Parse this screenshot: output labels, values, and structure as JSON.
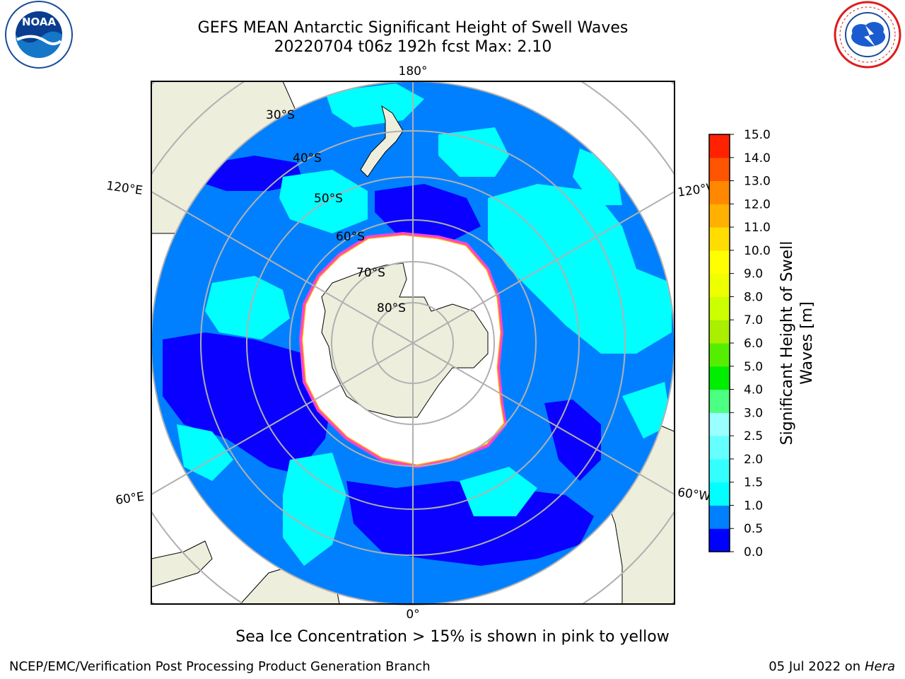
{
  "title": {
    "line1": "GEFS MEAN Antarctic Significant Height of Swell Waves",
    "line2": "20220704 t06z 192h fcst   Max: 2.10"
  },
  "logos": {
    "left": {
      "icon": "noaa-logo",
      "text": "NOAA"
    },
    "right": {
      "icon": "nws-logo",
      "text": "NATIONAL WEATHER SERVICE"
    }
  },
  "map": {
    "projection": "south-polar-stereographic",
    "lon_labels": {
      "top": "180°",
      "bottom": "0°",
      "upper_left": "120°E",
      "upper_right": "120°W",
      "lower_left": "60°E",
      "lower_right": "60°W"
    },
    "lat_labels": [
      "30°S",
      "40°S",
      "50°S",
      "60°S",
      "70°S",
      "80°S"
    ],
    "colors": {
      "land": "#eeeedd",
      "ocean_low": "#0a00ff",
      "ocean_mid": "#0080ff",
      "ocean_high": "#00ffff",
      "sea_ice": "#ffffff",
      "ice_edge": "#ff44cc",
      "ice_edge_outer": "#ffaa00",
      "grid": "#b0b0b0"
    }
  },
  "colorbar": {
    "label": "Significant Height of Swell Waves [m]",
    "ticks": [
      "0.0",
      "0.5",
      "1.0",
      "1.5",
      "2.0",
      "2.5",
      "3.0",
      "4.0",
      "5.0",
      "6.0",
      "7.0",
      "8.0",
      "9.0",
      "10.0",
      "11.0",
      "12.0",
      "13.0",
      "14.0",
      "15.0"
    ],
    "colors": [
      "#0000ff",
      "#0080ff",
      "#00ffff",
      "#33ffff",
      "#66ffff",
      "#99ffff",
      "#4dff80",
      "#00ee00",
      "#55ee00",
      "#aaee00",
      "#ccff00",
      "#eeff00",
      "#ffff00",
      "#ffdd00",
      "#ffb000",
      "#ff8800",
      "#ff5500",
      "#ff2200"
    ]
  },
  "note": "Sea Ice Concentration > 15% is shown in pink to yellow",
  "footer": {
    "left": "NCEP/EMC/Verification Post Processing Product Generation Branch",
    "right_prefix": "05 Jul 2022 on ",
    "right_machine": "Hera"
  }
}
